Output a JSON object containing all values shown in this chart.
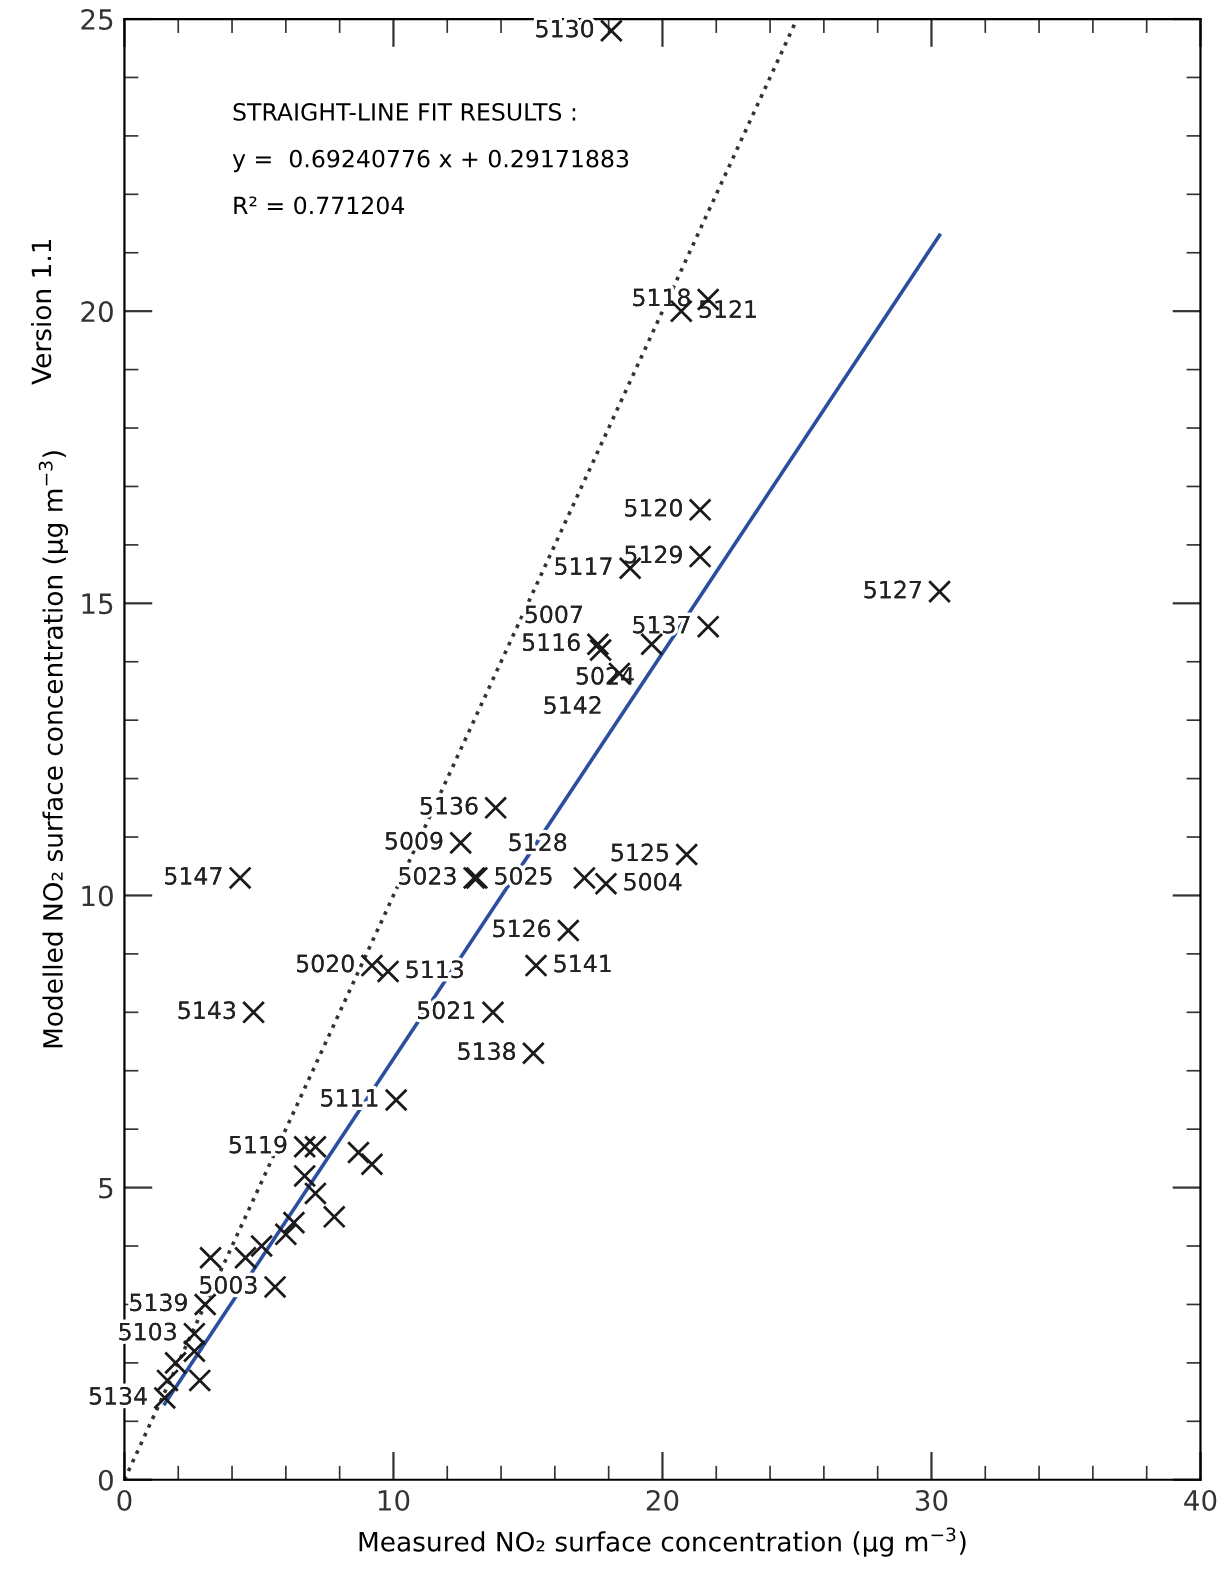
{
  "chart_data": {
    "type": "scatter",
    "subtitle": "Version 1.1",
    "xlabel": "Measured NO₂ surface concentration (μg m$^{−3}$)",
    "ylabel": "Modelled NO₂ surface concentration (μg m$^{−3}$)",
    "xlim": [
      0,
      40
    ],
    "ylim": [
      0,
      25
    ],
    "xticks": [
      0,
      10,
      20,
      30,
      40
    ],
    "yticks": [
      0,
      5,
      10,
      15,
      20,
      25
    ],
    "grid": false,
    "legend": false,
    "series": [
      {
        "color": "#1a1a1a",
        "marker": "cross",
        "x": [
          18.1,
          21.7,
          20.7,
          21.4,
          21.4,
          18.8,
          30.3,
          21.7,
          17.6,
          17.7,
          19.6,
          18.4,
          13.8,
          12.5,
          20.9,
          4.3,
          13.0,
          13.1,
          17.1,
          17.9,
          16.5,
          9.2,
          9.8,
          15.3,
          4.8,
          13.7,
          15.2,
          10.1,
          8.7,
          9.2,
          6.7,
          7.1,
          6.7,
          7.1,
          7.8,
          6.3,
          6.0,
          5.1,
          4.5,
          5.6,
          3.2,
          3.0,
          2.6,
          2.6,
          1.9,
          2.8,
          1.6,
          1.5
        ],
        "values": [
          24.8,
          20.2,
          20.0,
          16.6,
          15.8,
          15.6,
          15.2,
          14.6,
          14.3,
          14.2,
          14.3,
          13.8,
          11.5,
          10.9,
          10.7,
          10.3,
          10.3,
          10.3,
          10.3,
          10.2,
          9.4,
          8.8,
          8.7,
          8.8,
          8.0,
          8.0,
          7.3,
          6.5,
          5.6,
          5.4,
          5.7,
          5.7,
          5.2,
          4.9,
          4.5,
          4.4,
          4.2,
          4.0,
          3.8,
          3.3,
          3.8,
          3.0,
          2.5,
          2.2,
          2.0,
          1.7,
          1.7,
          1.4
        ]
      },
      {
        "type": "line",
        "color": "#2a4ea0",
        "marker": "none",
        "line_style": "solid",
        "x": [
          1.5,
          30.3
        ],
        "values": [
          1.3,
          21.3
        ]
      },
      {
        "type": "line",
        "color": "#333333",
        "marker": "none",
        "line_style": "dotted",
        "x": [
          0,
          25
        ],
        "values": [
          0,
          25
        ]
      }
    ],
    "annotations": [
      "STRAIGHT-LINE FIT RESULTS :",
      "y =  0.69240776 x + 0.29171883",
      "R² = 0.771204",
      {
        "text": "5130",
        "x": 18.1,
        "y": 24.8
      },
      {
        "text": "5118",
        "x": 21.7,
        "y": 20.2
      },
      {
        "text": "5121",
        "x": 20.7,
        "y": 20.0
      },
      {
        "text": "5120",
        "x": 21.4,
        "y": 16.6
      },
      {
        "text": "5129",
        "x": 21.4,
        "y": 15.8
      },
      {
        "text": "5117",
        "x": 18.8,
        "y": 15.6
      },
      {
        "text": "5127",
        "x": 30.3,
        "y": 15.2
      },
      {
        "text": "5137",
        "x": 21.7,
        "y": 14.6
      },
      {
        "text": "5116",
        "x": 17.6,
        "y": 14.3
      },
      {
        "text": "5007",
        "x": 17.7,
        "y": 14.2
      },
      {
        "text": "5024",
        "x": 19.6,
        "y": 14.3
      },
      {
        "text": "5142",
        "x": 18.4,
        "y": 13.8
      },
      {
        "text": "5136",
        "x": 13.8,
        "y": 11.5
      },
      {
        "text": "5009",
        "x": 12.5,
        "y": 10.9
      },
      {
        "text": "5125",
        "x": 20.9,
        "y": 10.7
      },
      {
        "text": "5147",
        "x": 4.3,
        "y": 10.3
      },
      {
        "text": "5023",
        "x": 13.0,
        "y": 10.3
      },
      {
        "text": "5025",
        "x": 13.1,
        "y": 10.3
      },
      {
        "text": "5128",
        "x": 17.1,
        "y": 10.3
      },
      {
        "text": "5004",
        "x": 17.9,
        "y": 10.2
      },
      {
        "text": "5126",
        "x": 16.5,
        "y": 9.4
      },
      {
        "text": "5020",
        "x": 9.2,
        "y": 8.8
      },
      {
        "text": "5113",
        "x": 9.8,
        "y": 8.7
      },
      {
        "text": "5141",
        "x": 15.3,
        "y": 8.8
      },
      {
        "text": "5143",
        "x": 4.8,
        "y": 8.0
      },
      {
        "text": "5021",
        "x": 13.7,
        "y": 8.0
      },
      {
        "text": "5138",
        "x": 15.2,
        "y": 7.3
      },
      {
        "text": "5111",
        "x": 10.1,
        "y": 6.5
      },
      {
        "text": "5119",
        "x": 6.7,
        "y": 5.7
      },
      {
        "text": "5003",
        "x": 5.6,
        "y": 3.3
      },
      {
        "text": "5139",
        "x": 3.0,
        "y": 3.0
      },
      {
        "text": "5103",
        "x": 2.6,
        "y": 2.5
      },
      {
        "text": "5134",
        "x": 1.5,
        "y": 1.4
      }
    ]
  }
}
